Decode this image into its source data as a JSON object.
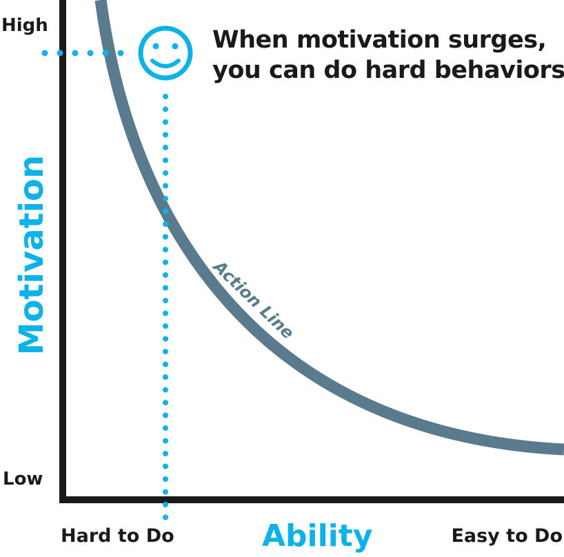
{
  "diagram": {
    "y_axis": {
      "label": "Motivation",
      "top_label": "High",
      "bottom_label": "Low"
    },
    "x_axis": {
      "label": "Ability",
      "left_label": "Hard to Do",
      "right_label": "Easy to Do"
    },
    "curve_label": "Action Line",
    "callout": {
      "line1": "When motivation surges,",
      "line2": "you can do hard behaviors."
    },
    "marker_icon": "smiley-face-icon",
    "colors": {
      "accent": "#0db2e8",
      "curve": "#5a7a8e",
      "axes": "#1a1a1a",
      "text": "#1a1a1a"
    }
  }
}
